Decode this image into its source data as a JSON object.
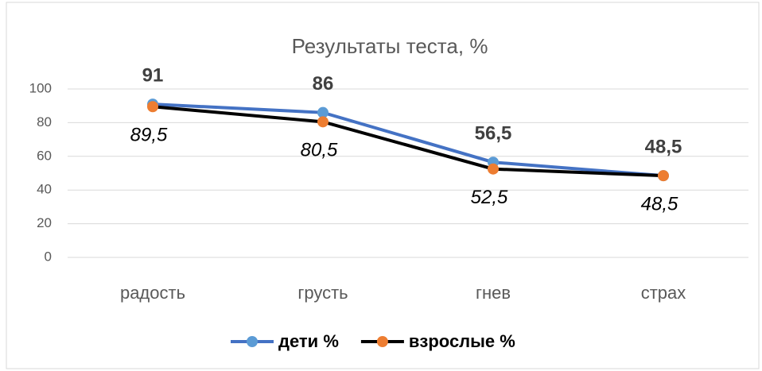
{
  "chart_data": {
    "type": "line",
    "title": "Результаты теста, %",
    "categories": [
      "радость",
      "грусть",
      "гнев",
      "страх"
    ],
    "series": [
      {
        "name": "дети %",
        "color": "#4472c4",
        "marker_color": "#5b9bd5",
        "values": [
          91,
          86,
          56.5,
          48.5
        ],
        "value_labels": [
          "91",
          "86",
          "56,5",
          "48,5"
        ]
      },
      {
        "name": "взрослые %",
        "color": "#000000",
        "marker_color": "#ed7d31",
        "values": [
          89.5,
          80.5,
          52.5,
          48.5
        ],
        "value_labels": [
          "89,5",
          "80,5",
          "52,5",
          "48,5"
        ]
      }
    ],
    "ylim": [
      0,
      100
    ],
    "yticks": [
      0,
      20,
      40,
      60,
      80,
      100
    ],
    "grid": true,
    "legend": "bottom"
  }
}
